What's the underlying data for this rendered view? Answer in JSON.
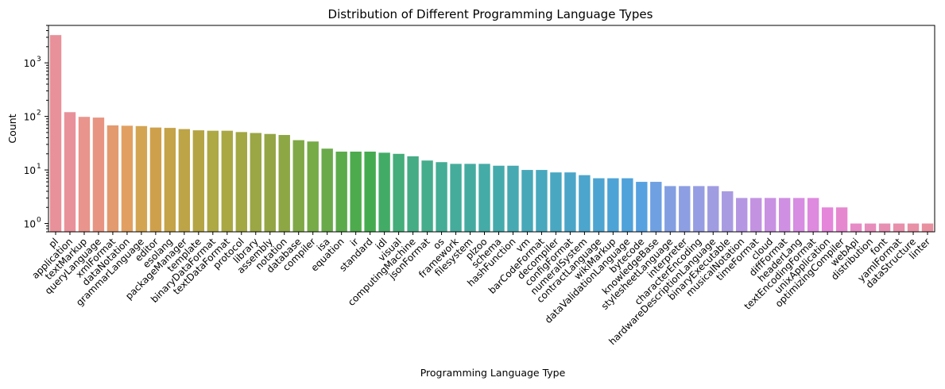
{
  "chart_data": {
    "type": "bar",
    "title": "Distribution of Different Programming Language Types",
    "xlabel": "Programming Language Type",
    "ylabel": "Count",
    "yscale": "log",
    "ylim": [
      0.7,
      5000
    ],
    "yticks": [
      {
        "value": 1,
        "base": "10",
        "exp": "0"
      },
      {
        "value": 10,
        "base": "10",
        "exp": "1"
      },
      {
        "value": 100,
        "base": "10",
        "exp": "2"
      },
      {
        "value": 1000,
        "base": "10",
        "exp": "3"
      }
    ],
    "grid": false,
    "legend": "none",
    "categories": [
      "pl",
      "application",
      "textMarkup",
      "queryLanguage",
      "xmlFormat",
      "dataNotation",
      "grammarLanguage",
      "editor",
      "esolang",
      "packageManager",
      "template",
      "binaryDataFormat",
      "textDataFormat",
      "protocol",
      "library",
      "assembly",
      "notation",
      "database",
      "compiler",
      "isa",
      "equation",
      "ir",
      "standard",
      "idl",
      "visual",
      "computingMachine",
      "jsonFormat",
      "os",
      "framework",
      "filesystem",
      "plzoo",
      "schema",
      "hashFunction",
      "vm",
      "barCodeFormat",
      "decompiler",
      "configFormat",
      "numeralSystem",
      "contractLanguage",
      "wikiMarkup",
      "dataValidationLanguage",
      "bytecode",
      "knowledgeBase",
      "stylesheetLanguage",
      "interpreter",
      "characterEncoding",
      "hardwareDescriptionLanguage",
      "binaryExecutable",
      "musicalNotation",
      "timeFormat",
      "cloud",
      "diffFormat",
      "headerLang",
      "textEncodingFormat",
      "unixApplication",
      "optimizingCompiler",
      "webApi",
      "distribution",
      "font",
      "yamlFormat",
      "dataStructure",
      "linter"
    ],
    "values": [
      3300,
      120,
      98,
      95,
      68,
      67,
      66,
      62,
      61,
      58,
      55,
      54,
      54,
      51,
      49,
      47,
      45,
      36,
      34,
      25,
      22,
      22,
      22,
      21,
      20,
      18,
      15,
      14,
      13,
      13,
      13,
      12,
      12,
      10,
      10,
      9,
      9,
      8,
      7,
      7,
      7,
      6,
      6,
      5,
      5,
      5,
      5,
      4,
      3,
      3,
      3,
      3,
      3,
      3,
      2,
      2,
      1,
      1,
      1,
      1,
      1,
      1
    ],
    "colors": [
      "#e8919a",
      "#e8919a",
      "#e9948c",
      "#e89482",
      "#e39a6f",
      "#e1a061",
      "#d3a552",
      "#cfa04c",
      "#c4a349",
      "#bda447",
      "#b4a444",
      "#aea845",
      "#a9a843",
      "#a3a744",
      "#9ba645",
      "#94a545",
      "#8da745",
      "#80a846",
      "#76ab47",
      "#6aaa4a",
      "#5cab4b",
      "#4eab4d",
      "#45ab50",
      "#42ac66",
      "#44ad79",
      "#45ac86",
      "#45ac8c",
      "#45ad95",
      "#45ac9b",
      "#45aba1",
      "#45aba6",
      "#45aaab",
      "#47a9b1",
      "#47a8b8",
      "#48a8bd",
      "#49a7c1",
      "#4ba5c8",
      "#4ca5cc",
      "#4da4d0",
      "#4da3d6",
      "#4fa2da",
      "#57a1e1",
      "#6ea0e2",
      "#839fe2",
      "#8d9ee2",
      "#979de2",
      "#a09ce2",
      "#a99be2",
      "#b596e2",
      "#c393e2",
      "#c991e2",
      "#cf8fe2",
      "#d68de2",
      "#de8adf",
      "#e586db",
      "#e688d0",
      "#e68bc5",
      "#e68dbc",
      "#e68fb3",
      "#e78fab",
      "#e890a5",
      "#e8909f"
    ]
  }
}
